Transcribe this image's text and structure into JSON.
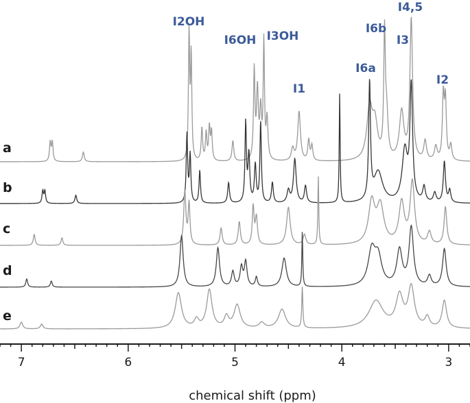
{
  "chart_data": {
    "type": "line",
    "title": "",
    "xlabel": "chemical shift (ppm)",
    "ylabel": "",
    "xlim": [
      7.2,
      2.8
    ],
    "x_reversed": true,
    "x_ticks": [
      7,
      6,
      5,
      4,
      3
    ],
    "grid": false,
    "peak_labels": [
      {
        "text": "I2OH",
        "ppm": 5.42
      },
      {
        "text": "I6OH",
        "ppm": 4.87
      },
      {
        "text": "I3OH",
        "ppm": 4.46
      },
      {
        "text": "I1",
        "ppm": 4.4
      },
      {
        "text": "I6a",
        "ppm": 3.74
      },
      {
        "text": "I6b",
        "ppm": 3.6
      },
      {
        "text": "I3",
        "ppm": 3.44
      },
      {
        "text": "I4,5",
        "ppm": 3.35
      },
      {
        "text": "I2",
        "ppm": 3.04
      }
    ],
    "series": [
      {
        "name": "a",
        "color": "#999999",
        "peaks": [
          {
            "ppm": 6.73,
            "height": 28,
            "width": 0.008
          },
          {
            "ppm": 6.71,
            "height": 28,
            "width": 0.008
          },
          {
            "ppm": 6.42,
            "height": 14,
            "width": 0.01
          },
          {
            "ppm": 5.43,
            "height": 185,
            "width": 0.007
          },
          {
            "ppm": 5.41,
            "height": 150,
            "width": 0.007
          },
          {
            "ppm": 5.31,
            "height": 48,
            "width": 0.008
          },
          {
            "ppm": 5.27,
            "height": 40,
            "width": 0.008
          },
          {
            "ppm": 5.24,
            "height": 48,
            "width": 0.008
          },
          {
            "ppm": 5.22,
            "height": 42,
            "width": 0.008
          },
          {
            "ppm": 5.02,
            "height": 30,
            "width": 0.01
          },
          {
            "ppm": 4.82,
            "height": 130,
            "width": 0.008
          },
          {
            "ppm": 4.79,
            "height": 100,
            "width": 0.01
          },
          {
            "ppm": 4.76,
            "height": 70,
            "width": 0.01
          },
          {
            "ppm": 4.73,
            "height": 170,
            "width": 0.007
          },
          {
            "ppm": 4.7,
            "height": 60,
            "width": 0.01
          },
          {
            "ppm": 4.46,
            "height": 18,
            "width": 0.015
          },
          {
            "ppm": 4.4,
            "height": 72,
            "width": 0.015
          },
          {
            "ppm": 4.31,
            "height": 30,
            "width": 0.01
          },
          {
            "ppm": 4.28,
            "height": 22,
            "width": 0.01
          },
          {
            "ppm": 3.74,
            "height": 75,
            "width": 0.03
          },
          {
            "ppm": 3.69,
            "height": 50,
            "width": 0.03
          },
          {
            "ppm": 3.6,
            "height": 175,
            "width": 0.009
          },
          {
            "ppm": 3.58,
            "height": 60,
            "width": 0.015
          },
          {
            "ppm": 3.44,
            "height": 70,
            "width": 0.025
          },
          {
            "ppm": 3.35,
            "height": 205,
            "width": 0.015
          },
          {
            "ppm": 3.22,
            "height": 28,
            "width": 0.015
          },
          {
            "ppm": 3.12,
            "height": 20,
            "width": 0.015
          },
          {
            "ppm": 3.05,
            "height": 92,
            "width": 0.01
          },
          {
            "ppm": 3.03,
            "height": 85,
            "width": 0.01
          },
          {
            "ppm": 2.98,
            "height": 22,
            "width": 0.012
          }
        ]
      },
      {
        "name": "b",
        "color": "#333333",
        "peaks": [
          {
            "ppm": 6.8,
            "height": 18,
            "width": 0.008
          },
          {
            "ppm": 6.78,
            "height": 18,
            "width": 0.008
          },
          {
            "ppm": 6.49,
            "height": 12,
            "width": 0.01
          },
          {
            "ppm": 5.45,
            "height": 100,
            "width": 0.008
          },
          {
            "ppm": 5.42,
            "height": 70,
            "width": 0.008
          },
          {
            "ppm": 5.33,
            "height": 48,
            "width": 0.008
          },
          {
            "ppm": 5.06,
            "height": 30,
            "width": 0.01
          },
          {
            "ppm": 4.9,
            "height": 116,
            "width": 0.008
          },
          {
            "ppm": 4.87,
            "height": 70,
            "width": 0.01
          },
          {
            "ppm": 4.81,
            "height": 55,
            "width": 0.01
          },
          {
            "ppm": 4.76,
            "height": 118,
            "width": 0.008
          },
          {
            "ppm": 4.65,
            "height": 30,
            "width": 0.01
          },
          {
            "ppm": 4.5,
            "height": 18,
            "width": 0.015
          },
          {
            "ppm": 4.44,
            "height": 64,
            "width": 0.015
          },
          {
            "ppm": 4.34,
            "height": 25,
            "width": 0.012
          },
          {
            "ppm": 4.02,
            "height": 160,
            "width": 0.005
          },
          {
            "ppm": 3.74,
            "height": 170,
            "width": 0.01
          },
          {
            "ppm": 3.66,
            "height": 45,
            "width": 0.05
          },
          {
            "ppm": 3.41,
            "height": 75,
            "width": 0.03
          },
          {
            "ppm": 3.35,
            "height": 165,
            "width": 0.015
          },
          {
            "ppm": 3.23,
            "height": 22,
            "width": 0.015
          },
          {
            "ppm": 3.13,
            "height": 14,
            "width": 0.015
          },
          {
            "ppm": 3.04,
            "height": 60,
            "width": 0.012
          },
          {
            "ppm": 2.99,
            "height": 18,
            "width": 0.012
          }
        ]
      },
      {
        "name": "c",
        "color": "#999999",
        "peaks": [
          {
            "ppm": 6.88,
            "height": 16,
            "width": 0.01
          },
          {
            "ppm": 6.62,
            "height": 11,
            "width": 0.01
          },
          {
            "ppm": 5.47,
            "height": 78,
            "width": 0.012
          },
          {
            "ppm": 5.43,
            "height": 60,
            "width": 0.01
          },
          {
            "ppm": 5.13,
            "height": 25,
            "width": 0.012
          },
          {
            "ppm": 4.96,
            "height": 34,
            "width": 0.012
          },
          {
            "ppm": 4.83,
            "height": 55,
            "width": 0.01
          },
          {
            "ppm": 4.8,
            "height": 40,
            "width": 0.012
          },
          {
            "ppm": 4.5,
            "height": 55,
            "width": 0.02
          },
          {
            "ppm": 4.35,
            "height": 15,
            "width": 0.015
          },
          {
            "ppm": 4.22,
            "height": 100,
            "width": 0.005
          },
          {
            "ppm": 3.72,
            "height": 60,
            "width": 0.035
          },
          {
            "ppm": 3.64,
            "height": 55,
            "width": 0.04
          },
          {
            "ppm": 3.44,
            "height": 60,
            "width": 0.03
          },
          {
            "ppm": 3.34,
            "height": 90,
            "width": 0.025
          },
          {
            "ppm": 3.18,
            "height": 18,
            "width": 0.02
          },
          {
            "ppm": 3.03,
            "height": 55,
            "width": 0.015
          }
        ]
      },
      {
        "name": "d",
        "color": "#444444",
        "peaks": [
          {
            "ppm": 6.95,
            "height": 12,
            "width": 0.01
          },
          {
            "ppm": 6.72,
            "height": 9,
            "width": 0.01
          },
          {
            "ppm": 5.5,
            "height": 75,
            "width": 0.018
          },
          {
            "ppm": 5.16,
            "height": 57,
            "width": 0.018
          },
          {
            "ppm": 5.02,
            "height": 22,
            "width": 0.015
          },
          {
            "ppm": 4.94,
            "height": 28,
            "width": 0.015
          },
          {
            "ppm": 4.9,
            "height": 36,
            "width": 0.015
          },
          {
            "ppm": 4.8,
            "height": 14,
            "width": 0.012
          },
          {
            "ppm": 4.54,
            "height": 42,
            "width": 0.025
          },
          {
            "ppm": 4.37,
            "height": 80,
            "width": 0.005
          },
          {
            "ppm": 3.72,
            "height": 50,
            "width": 0.04
          },
          {
            "ppm": 3.66,
            "height": 40,
            "width": 0.04
          },
          {
            "ppm": 3.46,
            "height": 52,
            "width": 0.03
          },
          {
            "ppm": 3.35,
            "height": 85,
            "width": 0.025
          },
          {
            "ppm": 3.18,
            "height": 15,
            "width": 0.02
          },
          {
            "ppm": 3.04,
            "height": 55,
            "width": 0.02
          }
        ]
      },
      {
        "name": "e",
        "color": "#999999",
        "peaks": [
          {
            "ppm": 7.0,
            "height": 10,
            "width": 0.015
          },
          {
            "ppm": 6.81,
            "height": 7,
            "width": 0.015
          },
          {
            "ppm": 5.53,
            "height": 52,
            "width": 0.035
          },
          {
            "ppm": 5.36,
            "height": 12,
            "width": 0.025
          },
          {
            "ppm": 5.24,
            "height": 56,
            "width": 0.03
          },
          {
            "ppm": 5.08,
            "height": 16,
            "width": 0.025
          },
          {
            "ppm": 4.98,
            "height": 34,
            "width": 0.035
          },
          {
            "ppm": 4.75,
            "height": 8,
            "width": 0.03
          },
          {
            "ppm": 4.56,
            "height": 28,
            "width": 0.04
          },
          {
            "ppm": 4.37,
            "height": 60,
            "width": 0.006
          },
          {
            "ppm": 3.68,
            "height": 40,
            "width": 0.08
          },
          {
            "ppm": 3.46,
            "height": 45,
            "width": 0.04
          },
          {
            "ppm": 3.35,
            "height": 58,
            "width": 0.035
          },
          {
            "ppm": 3.2,
            "height": 15,
            "width": 0.025
          },
          {
            "ppm": 3.04,
            "height": 40,
            "width": 0.025
          }
        ]
      }
    ]
  }
}
